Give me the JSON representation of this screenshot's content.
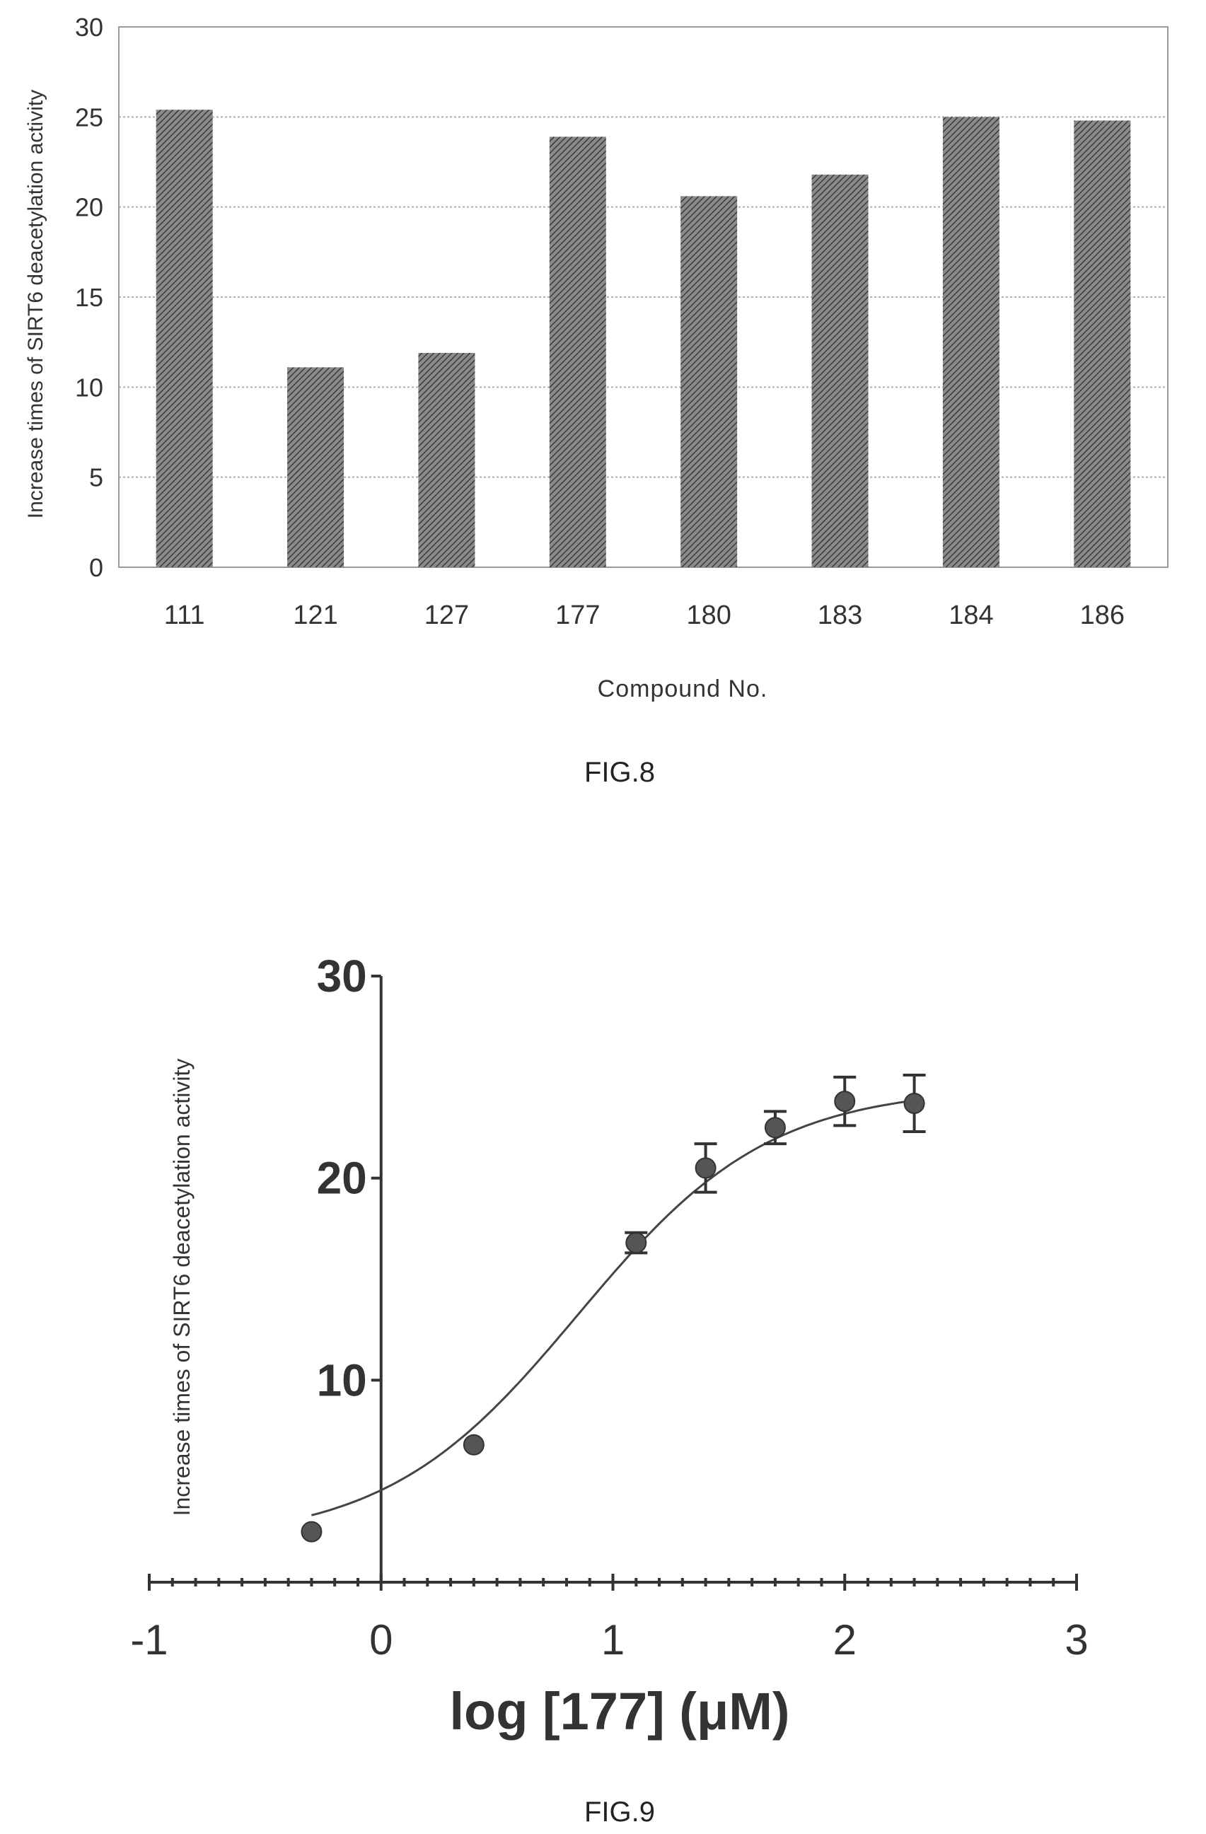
{
  "chart_data": [
    {
      "type": "bar",
      "figure_label": "FIG.8",
      "ylabel": "Increase times of SIRT6 deacetylation activity",
      "xlabel": "Compound No.",
      "ylim": [
        0,
        30
      ],
      "yticks": [
        0,
        5,
        10,
        15,
        20,
        25,
        30
      ],
      "grid": true,
      "categories": [
        "111",
        "121",
        "127",
        "177",
        "180",
        "183",
        "184",
        "186"
      ],
      "values": [
        25.4,
        11.1,
        11.9,
        23.9,
        20.6,
        21.8,
        25.0,
        24.8
      ]
    },
    {
      "type": "scatter",
      "figure_label": "FIG.9",
      "ylabel": "Increase times of SIRT6 deacetylation activity",
      "xlabel": "log [177] (μM)",
      "xlim": [
        -1,
        3
      ],
      "ylim": [
        0,
        30
      ],
      "xticks": [
        -1,
        0,
        1,
        2,
        3
      ],
      "yticks": [
        10,
        20,
        30
      ],
      "points": [
        {
          "x": -0.3,
          "y": 2.5,
          "err": 0
        },
        {
          "x": 0.4,
          "y": 6.8,
          "err": 0
        },
        {
          "x": 1.1,
          "y": 16.8,
          "err": 0.5
        },
        {
          "x": 1.4,
          "y": 20.5,
          "err": 1.2
        },
        {
          "x": 1.7,
          "y": 22.5,
          "err": 0.8
        },
        {
          "x": 2.0,
          "y": 23.8,
          "err": 1.2
        },
        {
          "x": 2.3,
          "y": 23.7,
          "err": 1.4
        }
      ],
      "fit": {
        "bottom": 2.0,
        "top": 24.5,
        "log_ec50": 0.85,
        "hill": 1.05
      }
    }
  ],
  "colors": {
    "bar_fill": "#5a5a5a",
    "grid": "#b0b0b0",
    "axis": "#333333"
  }
}
